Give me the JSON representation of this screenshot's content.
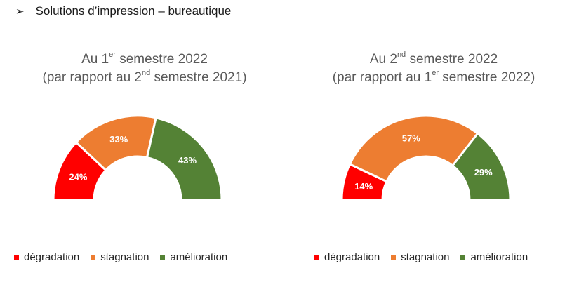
{
  "header": {
    "bullet": "➢",
    "text": "Solutions d’impression – bureautique"
  },
  "colors": {
    "degradation": "#ff0000",
    "stagnation": "#ed7d31",
    "amelioration": "#548235"
  },
  "chart_data": [
    {
      "type": "pie",
      "title_line1": {
        "pre": "Au 1",
        "sup": "er",
        "post": " semestre 2022"
      },
      "title_line2": {
        "pre": "(par rapport au 2",
        "sup": "nd",
        "post": " semestre 2021)"
      },
      "categories": [
        "dégradation",
        "stagnation",
        "amélioration"
      ],
      "values": [
        24,
        33,
        43
      ],
      "labels": [
        "24%",
        "33%",
        "43%"
      ],
      "legend": [
        "dégradation",
        "stagnation",
        "amélioration"
      ],
      "legend_placement": "bottom"
    },
    {
      "type": "pie",
      "title_line1": {
        "pre": "Au 2",
        "sup": "nd",
        "post": " semestre 2022"
      },
      "title_line2": {
        "pre": "(par rapport au 1",
        "sup": "er",
        "post": " semestre 2022)"
      },
      "categories": [
        "dégradation",
        "stagnation",
        "amélioration"
      ],
      "values": [
        14,
        57,
        29
      ],
      "labels": [
        "14%",
        "57%",
        "29%"
      ],
      "legend": [
        "dégradation",
        "stagnation",
        "amélioration"
      ],
      "legend_placement": "bottom"
    }
  ]
}
